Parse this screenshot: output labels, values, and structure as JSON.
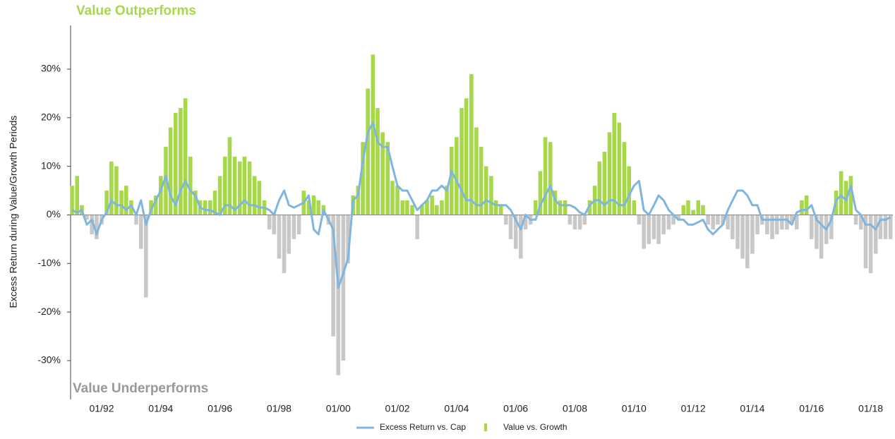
{
  "chart_data": {
    "type": "bar",
    "annotations": {
      "top": "Value Outperforms",
      "bottom": "Value Underperforms"
    },
    "y_label": "Excess Return during Value/Growth Periods",
    "x": [
      1991,
      1991.17,
      1991.33,
      1991.5,
      1991.67,
      1991.83,
      1992,
      1992.17,
      1992.33,
      1992.5,
      1992.67,
      1992.83,
      1993,
      1993.17,
      1993.33,
      1993.5,
      1993.67,
      1993.83,
      1994,
      1994.17,
      1994.33,
      1994.5,
      1994.67,
      1994.83,
      1995,
      1995.17,
      1995.33,
      1995.5,
      1995.67,
      1995.83,
      1996,
      1996.17,
      1996.33,
      1996.5,
      1996.67,
      1996.83,
      1997,
      1997.17,
      1997.33,
      1997.5,
      1997.67,
      1997.83,
      1998,
      1998.17,
      1998.33,
      1998.5,
      1998.67,
      1998.83,
      1999,
      1999.17,
      1999.33,
      1999.5,
      1999.67,
      1999.83,
      2000,
      2000.17,
      2000.33,
      2000.5,
      2000.67,
      2000.83,
      2001,
      2001.17,
      2001.33,
      2001.5,
      2001.67,
      2001.83,
      2002,
      2002.17,
      2002.33,
      2002.5,
      2002.67,
      2002.83,
      2003,
      2003.17,
      2003.33,
      2003.5,
      2003.67,
      2003.83,
      2004,
      2004.17,
      2004.33,
      2004.5,
      2004.67,
      2004.83,
      2005,
      2005.17,
      2005.33,
      2005.5,
      2005.67,
      2005.83,
      2006,
      2006.17,
      2006.33,
      2006.5,
      2006.67,
      2006.83,
      2007,
      2007.17,
      2007.33,
      2007.5,
      2007.67,
      2007.83,
      2008,
      2008.17,
      2008.33,
      2008.5,
      2008.67,
      2008.83,
      2009,
      2009.17,
      2009.33,
      2009.5,
      2009.67,
      2009.83,
      2010,
      2010.17,
      2010.33,
      2010.5,
      2010.67,
      2010.83,
      2011,
      2011.17,
      2011.33,
      2011.5,
      2011.67,
      2011.83,
      2012,
      2012.17,
      2012.33,
      2012.5,
      2012.67,
      2012.83,
      2013,
      2013.17,
      2013.33,
      2013.5,
      2013.67,
      2013.83,
      2014,
      2014.17,
      2014.33,
      2014.5,
      2014.67,
      2014.83,
      2015,
      2015.17,
      2015.33,
      2015.5,
      2015.67,
      2015.83,
      2016,
      2016.17,
      2016.33,
      2016.5,
      2016.67,
      2016.83,
      2017,
      2017.17,
      2017.33,
      2017.5,
      2017.67,
      2017.83,
      2018,
      2018.17,
      2018.33,
      2018.5,
      2018.67
    ],
    "xlim": [
      1990.95,
      2018.75
    ],
    "xticks": [
      {
        "value": 1992,
        "label": "01/92"
      },
      {
        "value": 1994,
        "label": "01/94"
      },
      {
        "value": 1996,
        "label": "01/96"
      },
      {
        "value": 1998,
        "label": "01/98"
      },
      {
        "value": 2000,
        "label": "01/00"
      },
      {
        "value": 2002,
        "label": "01/02"
      },
      {
        "value": 2004,
        "label": "01/04"
      },
      {
        "value": 2006,
        "label": "01/06"
      },
      {
        "value": 2008,
        "label": "01/08"
      },
      {
        "value": 2010,
        "label": "01/10"
      },
      {
        "value": 2012,
        "label": "01/12"
      },
      {
        "value": 2014,
        "label": "01/14"
      },
      {
        "value": 2016,
        "label": "01/16"
      },
      {
        "value": 2018,
        "label": "01/18"
      }
    ],
    "ylim": [
      -38,
      39
    ],
    "yticks": [
      {
        "value": -30,
        "label": "-30%"
      },
      {
        "value": -20,
        "label": "-20%"
      },
      {
        "value": -10,
        "label": "-10%"
      },
      {
        "value": 0,
        "label": "0%"
      },
      {
        "value": 10,
        "label": "10%"
      },
      {
        "value": 20,
        "label": "20%"
      },
      {
        "value": 30,
        "label": "30%"
      }
    ],
    "series": [
      {
        "name": "Value vs. Growth",
        "type": "bar",
        "color": "#a6d84a",
        "negative_color": "#c8c8c8",
        "values": [
          6,
          8,
          2,
          -1,
          -4,
          -5,
          -2,
          5,
          11,
          10,
          5,
          6,
          3,
          -2,
          -7,
          -17,
          3,
          4,
          8,
          14,
          18,
          21,
          22,
          24,
          12,
          5,
          3,
          3,
          3,
          5,
          8,
          12,
          16,
          12,
          11,
          12,
          11,
          8,
          7,
          3,
          -3,
          -4,
          -9,
          -12,
          -8,
          -5,
          -4,
          5,
          3,
          4,
          3,
          2,
          -2,
          -25,
          -33,
          -30,
          -10,
          4,
          6,
          15,
          26,
          33,
          22,
          17,
          15,
          7,
          6,
          3,
          3,
          2,
          -5,
          2,
          3,
          4,
          2,
          3,
          6,
          14,
          16,
          22,
          24,
          29,
          18,
          14,
          10,
          8,
          3,
          2,
          -2,
          -5,
          -7,
          -9,
          -3,
          -2,
          3,
          9,
          16,
          15,
          5,
          3,
          3,
          -2,
          -3,
          -3,
          -2,
          3,
          6,
          11,
          13,
          17,
          21,
          19,
          15,
          10,
          3,
          -2,
          -7,
          -6,
          -5,
          -6,
          -4,
          -3,
          -2,
          -1,
          2,
          3,
          1,
          3,
          2,
          -2,
          -3,
          -2,
          -2,
          -3,
          -5,
          -7,
          -9,
          -11,
          -8,
          -4,
          -2,
          -4,
          -5,
          -4,
          -3,
          -3,
          -2,
          -3,
          3,
          4,
          -5,
          -7,
          -9,
          -6,
          -5,
          5,
          9,
          7,
          8,
          -2,
          -3,
          -11,
          -12,
          -8,
          -5,
          -5,
          -5
        ]
      },
      {
        "name": "Excess Return vs. Cap",
        "type": "line",
        "color": "#7fb5de",
        "values": [
          1,
          0.5,
          1,
          -2,
          -1,
          -4,
          -1,
          0.5,
          3,
          2,
          2,
          1,
          2,
          0,
          3,
          -2,
          1,
          3,
          5,
          8,
          4,
          2,
          5,
          7,
          5,
          4,
          1.5,
          1,
          1,
          0.5,
          0,
          2,
          2,
          1,
          2,
          3,
          2,
          2,
          1.5,
          1.5,
          1,
          0,
          3,
          5,
          2,
          1.5,
          2,
          2.5,
          4,
          -3,
          -4,
          1,
          -1,
          -3,
          -15,
          -12,
          -9,
          3,
          4,
          11,
          17,
          19,
          15,
          14,
          14,
          10,
          6,
          5,
          5,
          3,
          1,
          2,
          3,
          5,
          5,
          6,
          5,
          9,
          7,
          5,
          3,
          3,
          2,
          2,
          3,
          2.5,
          2,
          2,
          2,
          1,
          -1,
          -3,
          0,
          -1,
          -1,
          2,
          4,
          6,
          3,
          2,
          2,
          2,
          1.5,
          0.5,
          0,
          2,
          3,
          3,
          2,
          3,
          3,
          2,
          2,
          4,
          6,
          7,
          1,
          0,
          2,
          4,
          3,
          1,
          0,
          -1,
          -1,
          -2,
          -2,
          -1.5,
          -1,
          -3,
          -4,
          -3,
          -2,
          1,
          3,
          5,
          5,
          4,
          2,
          2,
          -1,
          -1,
          -1,
          -1,
          -1,
          -1,
          -2,
          0.5,
          1,
          1,
          2,
          -1,
          -2,
          -3,
          -1,
          3,
          4,
          3,
          6,
          1,
          0,
          -2,
          -2,
          -3,
          -1,
          -1,
          -0.5
        ]
      }
    ]
  }
}
